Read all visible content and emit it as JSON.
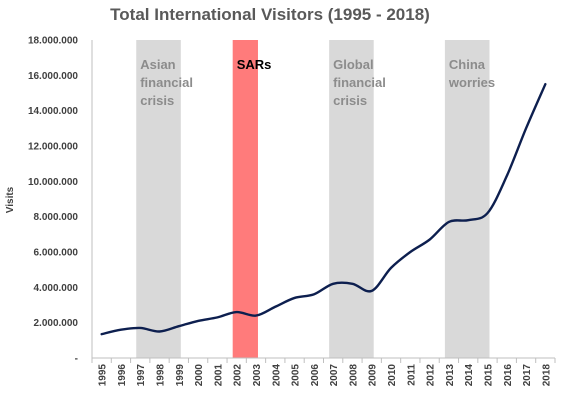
{
  "chart_data": {
    "type": "line",
    "title": "Total International Visitors (1995 - 2018)",
    "xlabel": "",
    "ylabel": "Visits",
    "ylim": [
      0,
      18000000
    ],
    "y_ticks": [
      {
        "value": 0,
        "label": "-"
      },
      {
        "value": 2000000,
        "label": "2.000.000"
      },
      {
        "value": 4000000,
        "label": "4.000.000"
      },
      {
        "value": 6000000,
        "label": "6.000.000"
      },
      {
        "value": 8000000,
        "label": "8.000.000"
      },
      {
        "value": 10000000,
        "label": "10.000.000"
      },
      {
        "value": 12000000,
        "label": "12.000.000"
      },
      {
        "value": 14000000,
        "label": "14.000.000"
      },
      {
        "value": 16000000,
        "label": "16.000.000"
      },
      {
        "value": 18000000,
        "label": "18.000.000"
      }
    ],
    "categories": [
      "1995",
      "1996",
      "1997",
      "1998",
      "1999",
      "2000",
      "2001",
      "2002",
      "2003",
      "2004",
      "2005",
      "2006",
      "2007",
      "2008",
      "2009",
      "2010",
      "2011",
      "2012",
      "2013",
      "2014",
      "2015",
      "2016",
      "2017",
      "2018"
    ],
    "series": [
      {
        "name": "",
        "color": "#0d1f4f",
        "values": [
          1350000,
          1600000,
          1700000,
          1500000,
          1800000,
          2100000,
          2300000,
          2600000,
          2400000,
          2900000,
          3400000,
          3600000,
          4200000,
          4200000,
          3800000,
          5100000,
          6000000,
          6700000,
          7700000,
          7800000,
          8200000,
          10300000,
          13000000,
          15500000
        ]
      }
    ],
    "bands": [
      {
        "start": "1997",
        "end": "1999",
        "label_lines": [
          "Asian",
          "financial",
          "crisis"
        ],
        "fill": "#d9d9d9",
        "text_color": "#8c8c8c"
      },
      {
        "start": "2002",
        "end": "2003",
        "label_lines": [
          "SARs"
        ],
        "fill": "#ff7b7b",
        "text_color": "#000000"
      },
      {
        "start": "2007",
        "end": "2009",
        "label_lines": [
          "Global",
          "financial",
          "crisis"
        ],
        "fill": "#d9d9d9",
        "text_color": "#8c8c8c"
      },
      {
        "start": "2013",
        "end": "2015",
        "label_lines": [
          "China",
          "worries"
        ],
        "fill": "#d9d9d9",
        "text_color": "#8c8c8c"
      }
    ],
    "grid": false,
    "legend": "none"
  }
}
